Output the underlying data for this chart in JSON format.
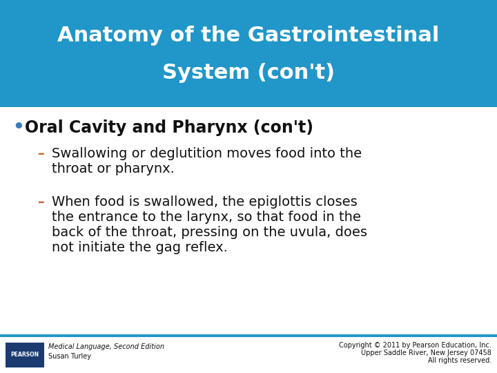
{
  "title_line1": "Anatomy of the Gastrointestinal",
  "title_line2": "System (con't)",
  "title_bg_color": "#2196C8",
  "title_text_color": "#ffffff",
  "bullet_color": "#3a7abf",
  "dash_color": "#cc6633",
  "body_bg_color": "#ffffff",
  "bullet_text": "Oral Cavity and Pharynx (con't)",
  "sub1_dash": "–",
  "sub1_text_line1": "Swallowing or deglutition moves food into the",
  "sub1_text_line2": "throat or pharynx.",
  "sub2_dash": "–",
  "sub2_text_line1": "When food is swallowed, the epiglottis closes",
  "sub2_text_line2": "the entrance to the larynx, so that food in the",
  "sub2_text_line3": "back of the throat, pressing on the uvula, does",
  "sub2_text_line4": "not initiate the gag reflex.",
  "footer_left_italic": "Medical Language,",
  "footer_left_normal": " Second Edition",
  "footer_left_line2": "Susan Turley",
  "footer_right_line1": "Copyright © 2011 by Pearson Education, Inc.",
  "footer_right_line2": "Upper Saddle River, New Jersey 07458",
  "footer_right_line3": "All rights reserved.",
  "footer_bar_color": "#2196C8",
  "pearson_box_color": "#1a3a70",
  "title_fontsize": 22,
  "bullet_fontsize": 17,
  "sub_fontsize": 14,
  "footer_fontsize": 7
}
